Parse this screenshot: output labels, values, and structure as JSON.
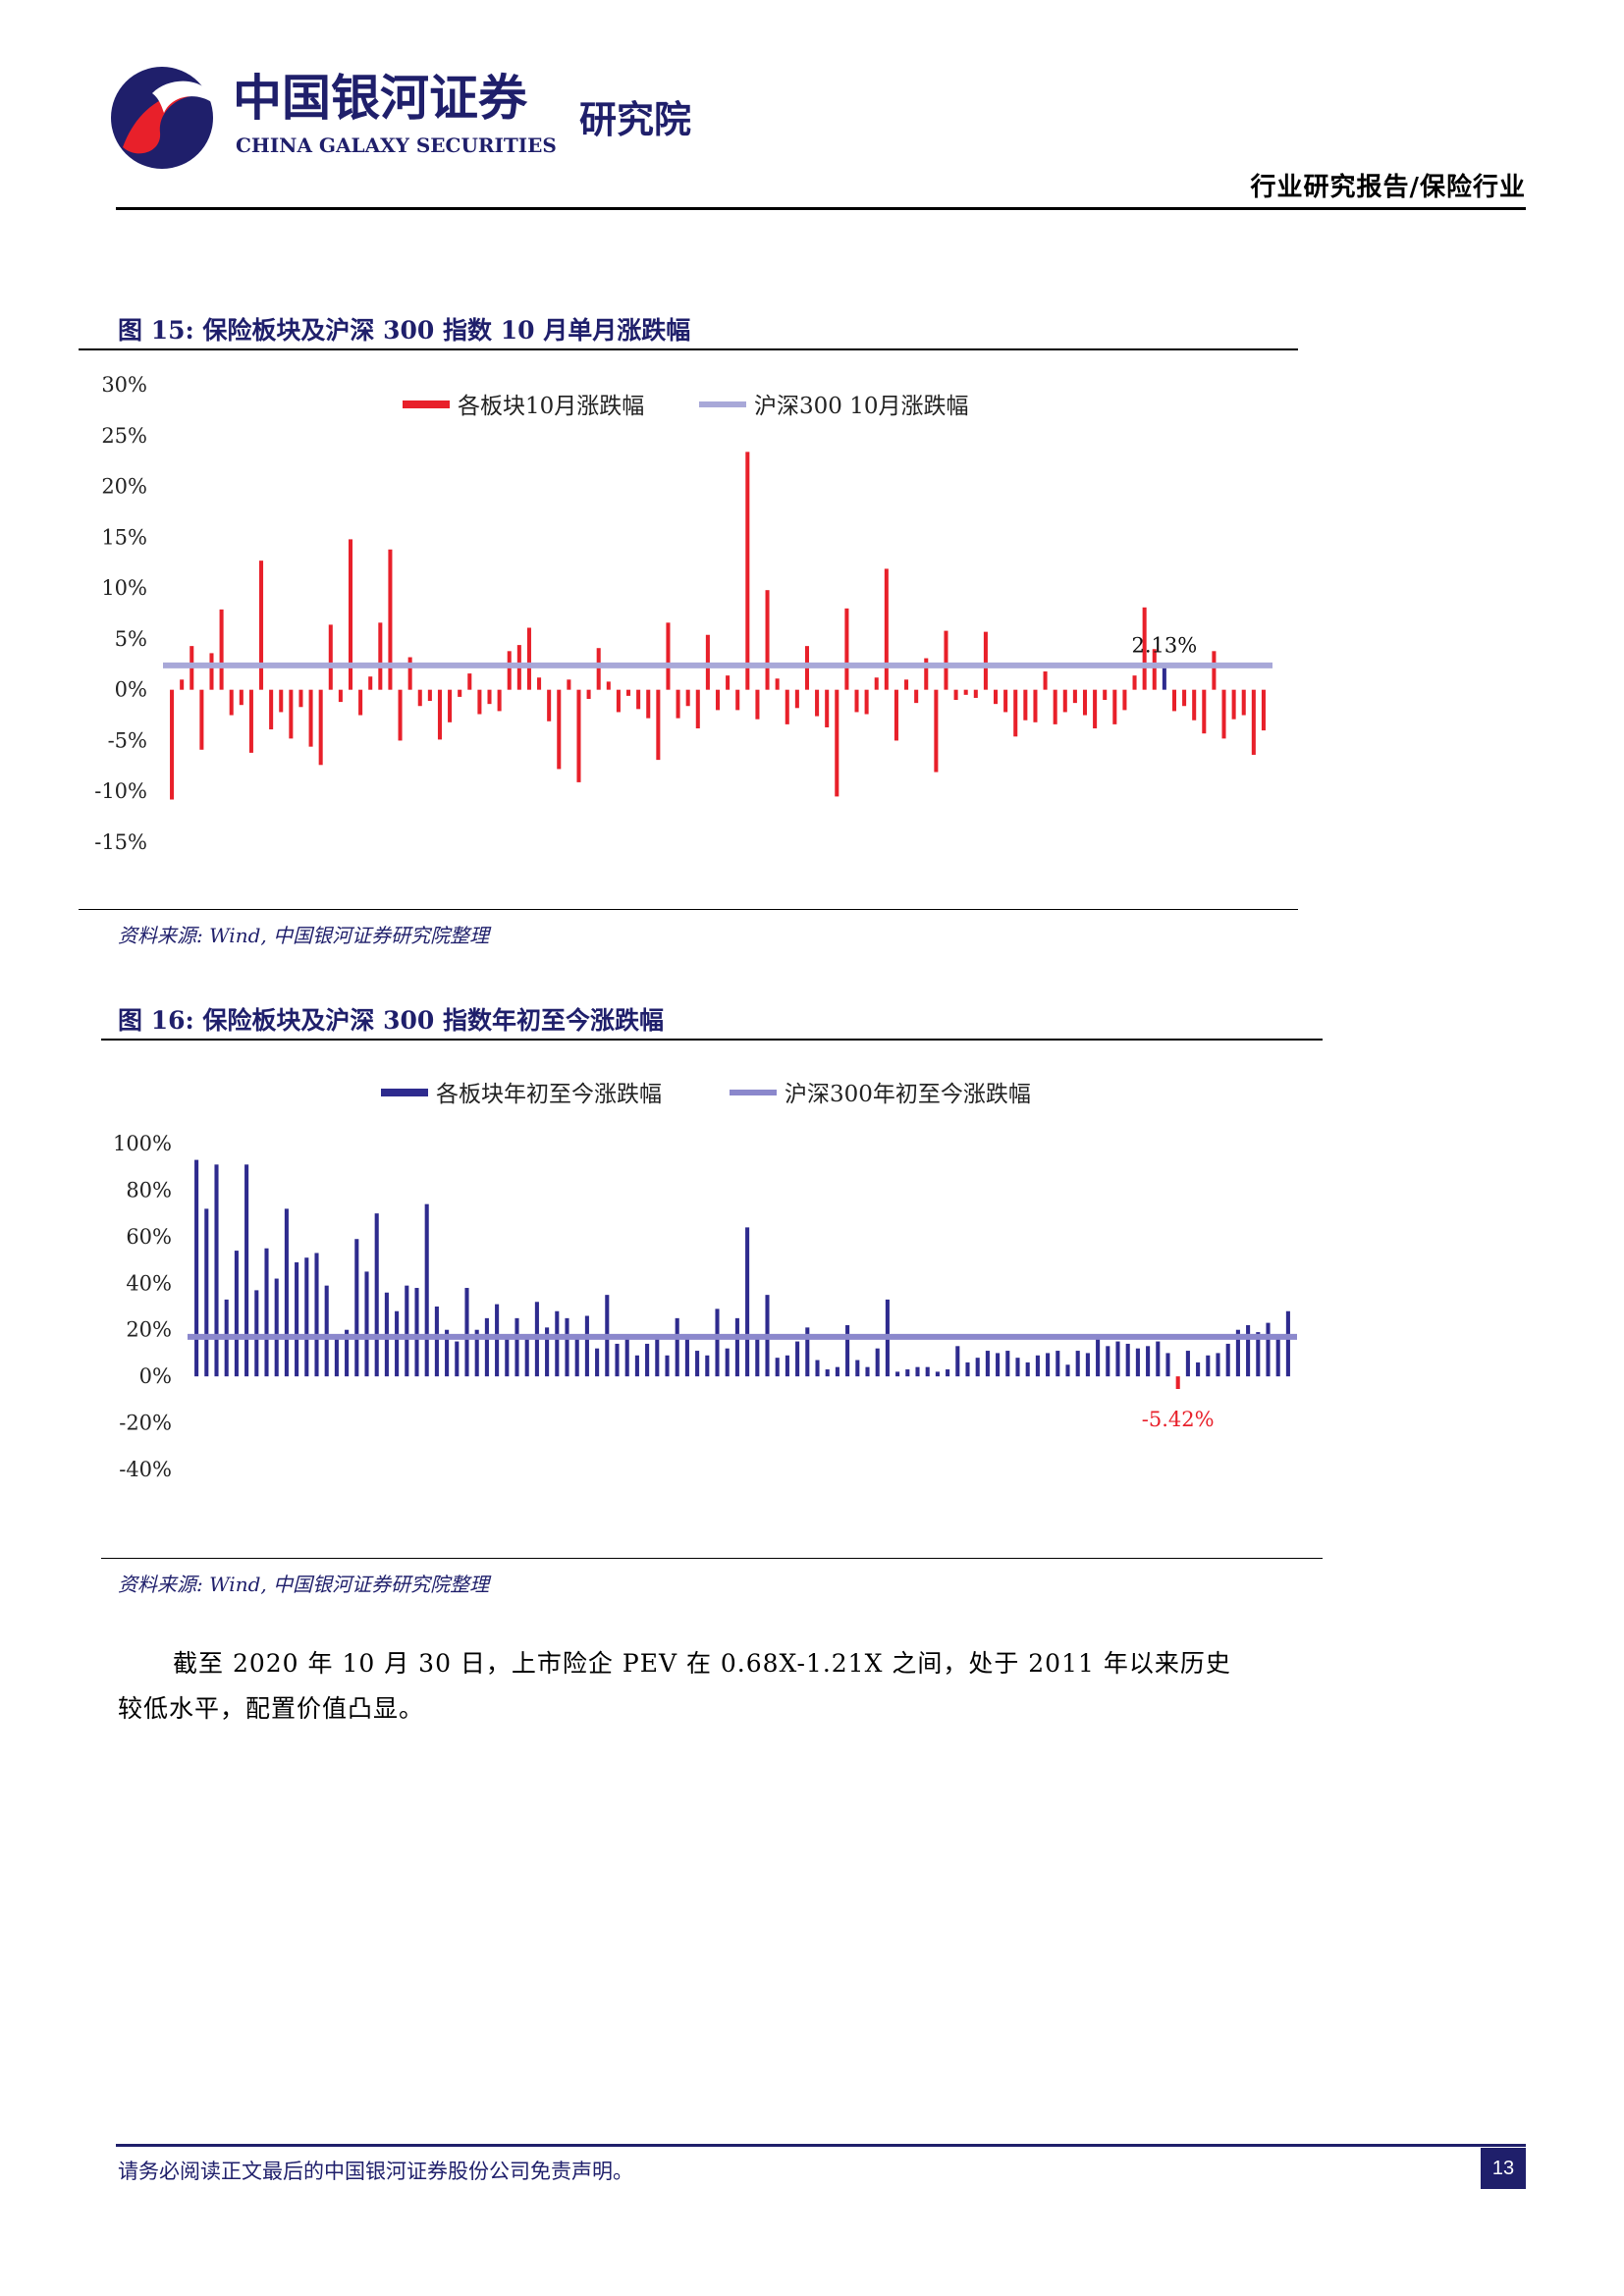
{
  "header": {
    "logo_cn": "中国银河证券",
    "logo_en": "CHINA GALAXY SECURITIES",
    "logo_sub": "研究院",
    "report_type": "行业研究报告/保险行业"
  },
  "figures": [
    {
      "title": "图 15: 保险板块及沪深 300 指数 10 月单月涨跌幅",
      "source": "资料来源: Wind, 中国银河证券研究院整理"
    },
    {
      "title": "图 16: 保险板块及沪深 300 指数年初至今涨跌幅",
      "source": "资料来源: Wind, 中国银河证券研究院整理"
    }
  ],
  "colors": {
    "red_bar": "#e8202a",
    "navy_bar": "#2e2b8e",
    "ref_line": "#a8a8d8",
    "ref_line2": "#8b88cc",
    "title_navy": "#1f1f6b"
  },
  "chart_data": [
    {
      "type": "bar",
      "legend": [
        "各板块10月涨跌幅",
        "沪深300 10月涨跌幅"
      ],
      "legend_position": "top",
      "yticks": [
        "30%",
        "25%",
        "20%",
        "15%",
        "10%",
        "5%",
        "0%",
        "-5%",
        "-10%",
        "-15%"
      ],
      "ylim": [
        -15,
        30
      ],
      "reference_line": 2.4,
      "annotation": {
        "text": "2.13%",
        "index": 100,
        "value": 2.13
      },
      "highlight_index": 100,
      "values": [
        -10.8,
        1.0,
        4.3,
        -5.9,
        3.6,
        7.9,
        -2.5,
        -1.5,
        -6.2,
        12.7,
        -3.9,
        -2.2,
        -4.8,
        -1.7,
        -5.6,
        -7.4,
        6.4,
        -1.2,
        14.8,
        -2.5,
        1.3,
        6.6,
        13.8,
        -5.0,
        3.2,
        -1.6,
        -1.1,
        -4.9,
        -3.2,
        -0.7,
        1.6,
        -2.4,
        -1.4,
        -2.1,
        3.8,
        4.4,
        6.1,
        1.2,
        -3.1,
        -7.8,
        1.0,
        -9.1,
        -0.9,
        4.1,
        0.8,
        -2.2,
        -0.6,
        -1.9,
        -2.8,
        -6.9,
        6.6,
        -2.8,
        -1.6,
        -3.8,
        5.4,
        -2.0,
        1.4,
        -2.0,
        23.4,
        -2.9,
        9.8,
        1.1,
        -3.4,
        -1.8,
        4.3,
        -2.6,
        -3.7,
        -10.5,
        8.0,
        -2.2,
        -2.4,
        1.2,
        11.9,
        -5.0,
        1.0,
        -1.3,
        3.1,
        -8.1,
        5.8,
        -1.0,
        -0.5,
        -0.8,
        5.7,
        -1.4,
        -2.2,
        -4.6,
        -3.0,
        -3.2,
        1.8,
        -3.4,
        -2.2,
        -1.3,
        -2.5,
        -3.8,
        -1.0,
        -3.4,
        -2.0,
        1.4,
        8.1,
        4.0,
        2.13,
        -2.1,
        -1.6,
        -3.0,
        -4.3,
        3.8,
        -4.8,
        -2.9,
        -2.5,
        -6.4,
        -4.0
      ]
    },
    {
      "type": "bar",
      "legend": [
        "各板块年初至今涨跌幅",
        "沪深300年初至今涨跌幅"
      ],
      "legend_position": "top",
      "yticks": [
        "100%",
        "80%",
        "60%",
        "40%",
        "20%",
        "0%",
        "-20%",
        "-40%"
      ],
      "ylim": [
        -40,
        100
      ],
      "reference_line": 17.0,
      "annotation": {
        "text": "-5.42%",
        "index": 98,
        "value": -5.42
      },
      "highlight_index": 98,
      "values": [
        93,
        72,
        91,
        33,
        54,
        91,
        37,
        55,
        42,
        72,
        49,
        51,
        53,
        39,
        16,
        20,
        59,
        45,
        70,
        36,
        28,
        39,
        38,
        74,
        30,
        20,
        15,
        38,
        20,
        25,
        31,
        17,
        25,
        16,
        32,
        21,
        28,
        25,
        17,
        26,
        12,
        35,
        14,
        18,
        9,
        14,
        18,
        9,
        25,
        17,
        11,
        9,
        29,
        12,
        25,
        64,
        16,
        35,
        8,
        9,
        15,
        21,
        7,
        3,
        4,
        22,
        7,
        4,
        12,
        33,
        2,
        3,
        4,
        4,
        2,
        3,
        13,
        6,
        8,
        11,
        10,
        11,
        8,
        6,
        9,
        10,
        11,
        5,
        11,
        10,
        17,
        13,
        15,
        14,
        12,
        13,
        15,
        10,
        -5.42,
        11,
        6,
        9,
        10,
        14,
        20,
        22,
        19,
        23,
        18,
        28
      ]
    }
  ],
  "body": {
    "paragraph": "截至 2020 年 10 月 30 日，上市险企 PEV 在 0.68X-1.21X 之间，处于 2011 年以来历史较低水平，配置价值凸显。"
  },
  "footer": {
    "disclaimer": "请务必阅读正文最后的中国银河证券股份公司免责声明。",
    "page": "13"
  }
}
